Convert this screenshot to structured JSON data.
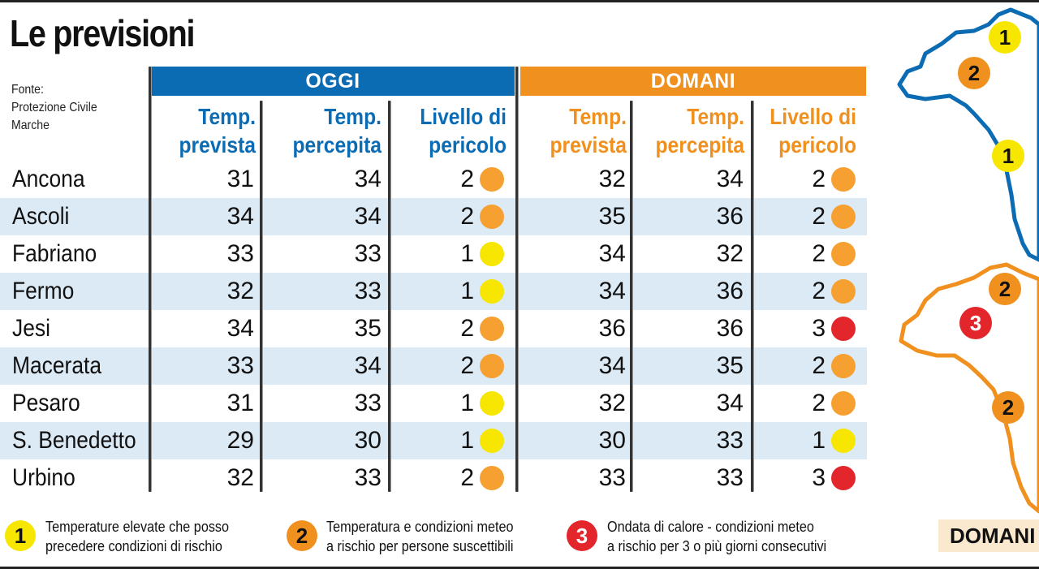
{
  "title": "Le previsioni",
  "source": [
    "Fonte:",
    "Protezione Civile",
    "Marche"
  ],
  "groups": {
    "oggi": "OGGI",
    "domani": "DOMANI"
  },
  "headers": {
    "temp_prevista": [
      "Temp.",
      "prevista"
    ],
    "temp_percepita": [
      "Temp.",
      "percepita"
    ],
    "livello": [
      "Livello di",
      "pericolo"
    ]
  },
  "colors": {
    "blue": "#0b6cb4",
    "orange": "#f0901e",
    "yellow": "#f7e600",
    "level2": "#f5a030",
    "red": "#e3262b",
    "shade": "#dceaf5"
  },
  "rows": [
    {
      "city": "Ancona",
      "oggi": {
        "prevista": "31",
        "percepita": "34",
        "livello": "2"
      },
      "domani": {
        "prevista": "32",
        "percepita": "34",
        "livello": "2"
      }
    },
    {
      "city": "Ascoli",
      "oggi": {
        "prevista": "34",
        "percepita": "34",
        "livello": "2"
      },
      "domani": {
        "prevista": "35",
        "percepita": "36",
        "livello": "2"
      }
    },
    {
      "city": "Fabriano",
      "oggi": {
        "prevista": "33",
        "percepita": "33",
        "livello": "1"
      },
      "domani": {
        "prevista": "34",
        "percepita": "32",
        "livello": "2"
      }
    },
    {
      "city": "Fermo",
      "oggi": {
        "prevista": "32",
        "percepita": "33",
        "livello": "1"
      },
      "domani": {
        "prevista": "34",
        "percepita": "36",
        "livello": "2"
      }
    },
    {
      "city": "Jesi",
      "oggi": {
        "prevista": "34",
        "percepita": "35",
        "livello": "2"
      },
      "domani": {
        "prevista": "36",
        "percepita": "36",
        "livello": "3"
      }
    },
    {
      "city": "Macerata",
      "oggi": {
        "prevista": "33",
        "percepita": "34",
        "livello": "2"
      },
      "domani": {
        "prevista": "34",
        "percepita": "35",
        "livello": "2"
      }
    },
    {
      "city": "Pesaro",
      "oggi": {
        "prevista": "31",
        "percepita": "33",
        "livello": "1"
      },
      "domani": {
        "prevista": "32",
        "percepita": "34",
        "livello": "2"
      }
    },
    {
      "city": "S. Benedetto",
      "oggi": {
        "prevista": "29",
        "percepita": "30",
        "livello": "1"
      },
      "domani": {
        "prevista": "30",
        "percepita": "33",
        "livello": "1"
      }
    },
    {
      "city": "Urbino",
      "oggi": {
        "prevista": "32",
        "percepita": "33",
        "livello": "2"
      },
      "domani": {
        "prevista": "33",
        "percepita": "33",
        "livello": "3"
      }
    }
  ],
  "legend": [
    {
      "level": "1",
      "lines": [
        "Temperature elevate che posso",
        "precedere condizioni di rischio"
      ]
    },
    {
      "level": "2",
      "lines": [
        "Temperatura e condizioni meteo",
        "a rischio per persone suscettibili"
      ]
    },
    {
      "level": "3",
      "lines": [
        "Ondata di calore - condizioni meteo",
        "a rischio per 3 o più giorni consecutivi"
      ]
    }
  ],
  "map": {
    "oggi_badges": [
      "1",
      "2",
      "1"
    ],
    "domani_badges": [
      "2",
      "3",
      "2"
    ],
    "label": "DOMANI"
  }
}
